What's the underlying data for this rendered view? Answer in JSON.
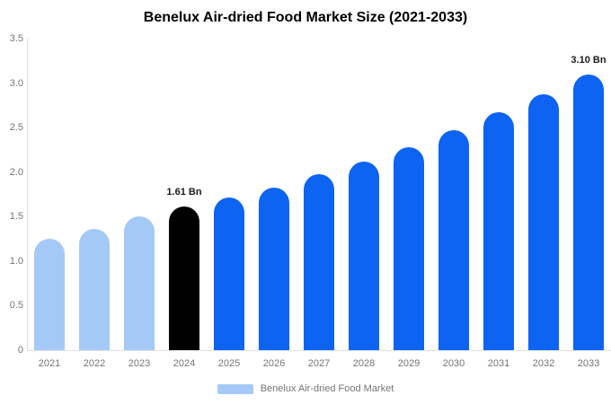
{
  "title": "Benelux Air-dried Food Market Size (2021-2033)",
  "legend": {
    "label": "Benelux Air-dried Food Market",
    "swatch_color": "#a4c9f6"
  },
  "colors": {
    "historical": "#a4c9f6",
    "base_year": "#000000",
    "forecast": "#0d63f2",
    "axis_line": "#e2e2e2",
    "tick_text": "#757575",
    "title_text": "#000000",
    "value_label_text": "#1a1a1a",
    "background": "#ffffff"
  },
  "chart_data": {
    "type": "bar",
    "title": "Benelux Air-dried Food Market Size (2021-2033)",
    "unit": "Bn",
    "categories": [
      "2021",
      "2022",
      "2023",
      "2024",
      "2025",
      "2026",
      "2027",
      "2028",
      "2029",
      "2030",
      "2031",
      "2032",
      "2033"
    ],
    "values": [
      1.25,
      1.36,
      1.5,
      1.61,
      1.71,
      1.83,
      1.98,
      2.12,
      2.28,
      2.47,
      2.67,
      2.87,
      3.1
    ],
    "bar_roles": [
      "historical",
      "historical",
      "historical",
      "base_year",
      "forecast",
      "forecast",
      "forecast",
      "forecast",
      "forecast",
      "forecast",
      "forecast",
      "forecast",
      "forecast"
    ],
    "point_labels": [
      "",
      "",
      "",
      "1.61 Bn",
      "",
      "",
      "",
      "",
      "",
      "",
      "",
      "",
      "3.10 Bn"
    ],
    "xlabel": "",
    "ylabel": "",
    "ylim": [
      0,
      3.5
    ],
    "ytick_values": [
      0,
      0.5,
      1.0,
      1.5,
      2.0,
      2.5,
      3.0,
      3.5
    ],
    "ytick_labels": [
      "0",
      "0.5",
      "1.0",
      "1.5",
      "2.0",
      "2.5",
      "3.0",
      "3.5"
    ],
    "grid": false,
    "legend_position": "bottom",
    "legend_entries": [
      "Benelux Air-dried Food Market"
    ]
  }
}
